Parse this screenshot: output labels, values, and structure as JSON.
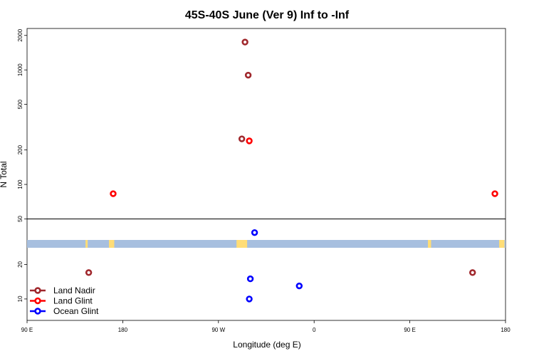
{
  "chart_data": {
    "type": "scatter",
    "title": "45S-40S June (Ver 9)   Inf to -Inf",
    "xlabel": "Longitude (deg E)",
    "ylabel": "N Total",
    "x_ticks": [
      {
        "value": 90,
        "label": "90 E"
      },
      {
        "value": 180,
        "label": "180"
      },
      {
        "value": 270,
        "label": "90 W"
      },
      {
        "value": 360,
        "label": "0"
      },
      {
        "value": 450,
        "label": "90 E"
      },
      {
        "value": 540,
        "label": "180"
      }
    ],
    "xlim": [
      90,
      540
    ],
    "y_scale": "log",
    "ylim": [
      6.5,
      2300
    ],
    "y_ticks": [
      10,
      20,
      50,
      100,
      200,
      500,
      1000,
      2000
    ],
    "reference_line_y": 50,
    "legend": {
      "position": "bottom-left"
    },
    "series": [
      {
        "name": "Land Nadir",
        "color": "#a0282d",
        "points": [
          [
            148,
            17
          ],
          [
            295,
            1750
          ],
          [
            298,
            900
          ],
          [
            292,
            250
          ],
          [
            509,
            17
          ]
        ]
      },
      {
        "name": "Land Glint",
        "color": "#ff0000",
        "points": [
          [
            171,
            83
          ],
          [
            299,
            240
          ],
          [
            530,
            83
          ]
        ]
      },
      {
        "name": "Ocean Glint",
        "color": "#0000ff",
        "points": [
          [
            304,
            38
          ],
          [
            299,
            10
          ],
          [
            300,
            15
          ],
          [
            346,
            13
          ]
        ]
      }
    ],
    "map_strip": {
      "ocean_color": "#a7bfdf",
      "land_color": "#ffdd77",
      "land_segments": [
        [
          145,
          147
        ],
        [
          167,
          172
        ],
        [
          287,
          297
        ],
        [
          467,
          470
        ],
        [
          534,
          539
        ]
      ]
    }
  }
}
